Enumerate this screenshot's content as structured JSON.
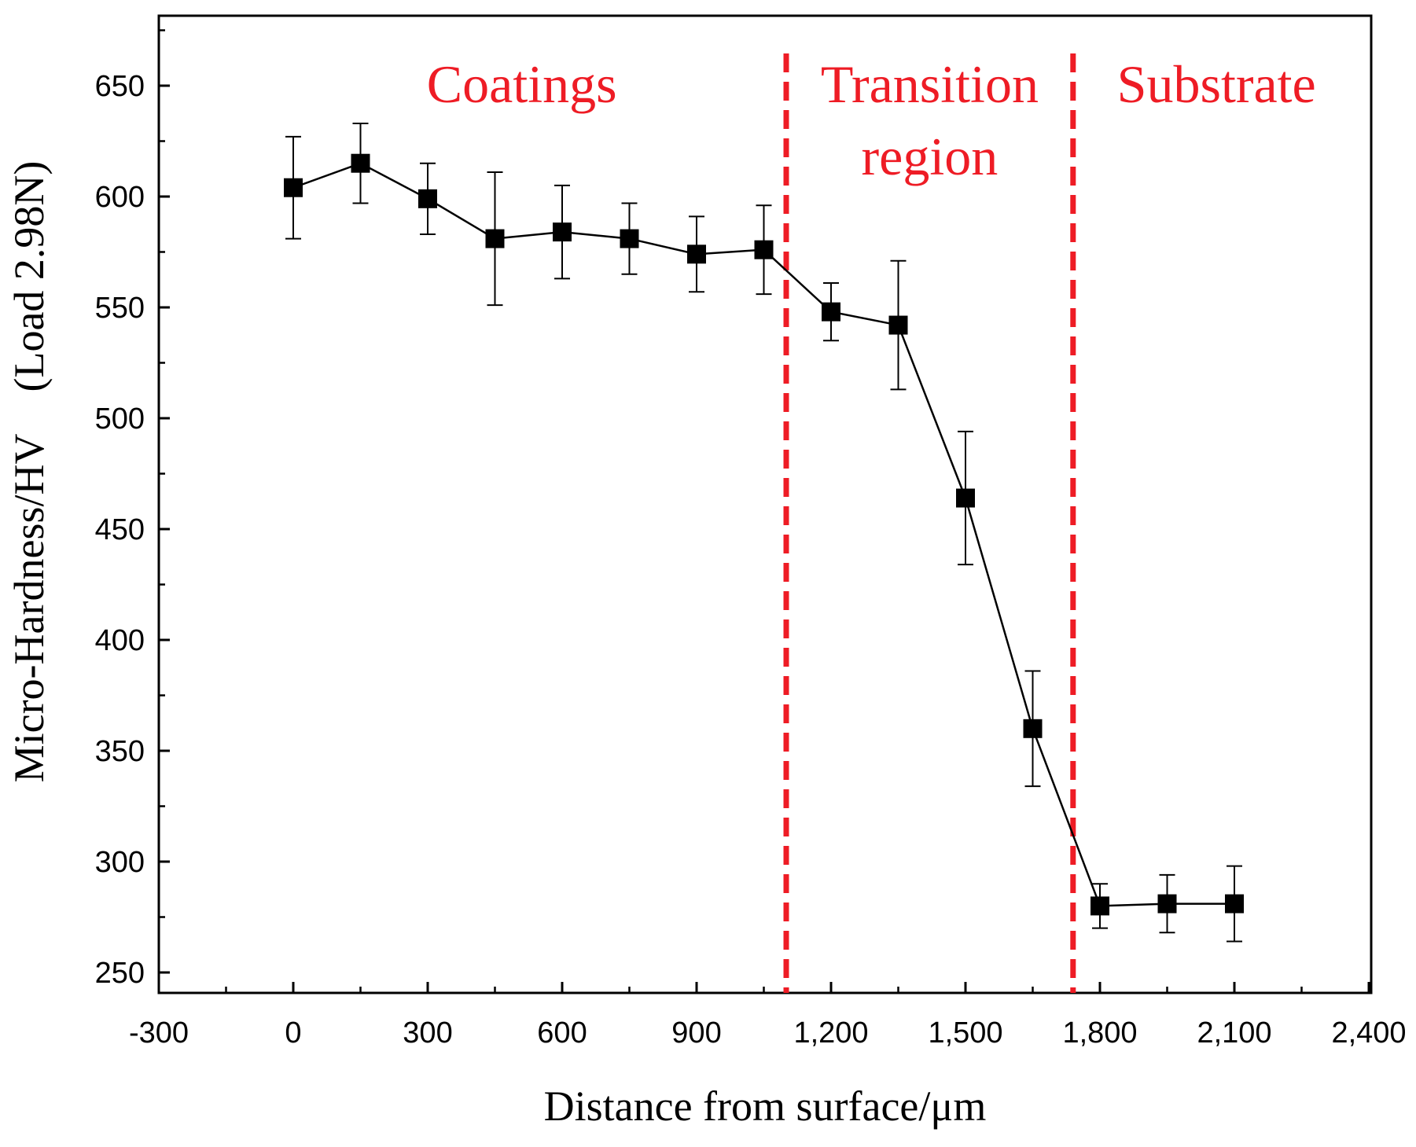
{
  "chart_data": {
    "type": "scatter",
    "xlabel": "Distance from surface/μm",
    "ylabel": "Micro-Hardness/HV　(Load 2.98N)",
    "xlim": [
      -300,
      2400
    ],
    "ylim": [
      240,
      680
    ],
    "xticks": [
      -300,
      0,
      300,
      600,
      900,
      1200,
      1500,
      1800,
      2100,
      2400
    ],
    "xtick_labels": [
      "-300",
      "0",
      "300",
      "600",
      "900",
      "1,200",
      "1,500",
      "1,800",
      "2,100",
      "2,400"
    ],
    "yticks": [
      250,
      300,
      350,
      400,
      450,
      500,
      550,
      600,
      650
    ],
    "ytick_labels": [
      "250",
      "300",
      "350",
      "400",
      "450",
      "500",
      "550",
      "600",
      "650"
    ],
    "grid": false,
    "series": [
      {
        "marker": "square",
        "color": "#000000",
        "x": [
          0,
          150,
          300,
          450,
          600,
          750,
          900,
          1050,
          1200,
          1350,
          1500,
          1650,
          1800,
          1950,
          2100
        ],
        "y": [
          604,
          615,
          599,
          581,
          584,
          581,
          574,
          576,
          548,
          542,
          464,
          360,
          280,
          281,
          281
        ],
        "error": [
          23,
          18,
          16,
          30,
          21,
          16,
          17,
          20,
          13,
          29,
          30,
          26,
          10,
          13,
          17
        ]
      }
    ],
    "dividers": [
      {
        "x": 1100,
        "color": "#ee1c25",
        "style": "dashed"
      },
      {
        "x": 1740,
        "color": "#ee1c25",
        "style": "dashed"
      }
    ],
    "regions": [
      {
        "lines": [
          "Coatings"
        ],
        "x_center": 510,
        "color": "#ee1c25"
      },
      {
        "lines": [
          "Transition",
          "region"
        ],
        "x_center": 1420,
        "color": "#ee1c25"
      },
      {
        "lines": [
          "Substrate"
        ],
        "x_center": 2060,
        "color": "#ee1c25"
      }
    ]
  }
}
